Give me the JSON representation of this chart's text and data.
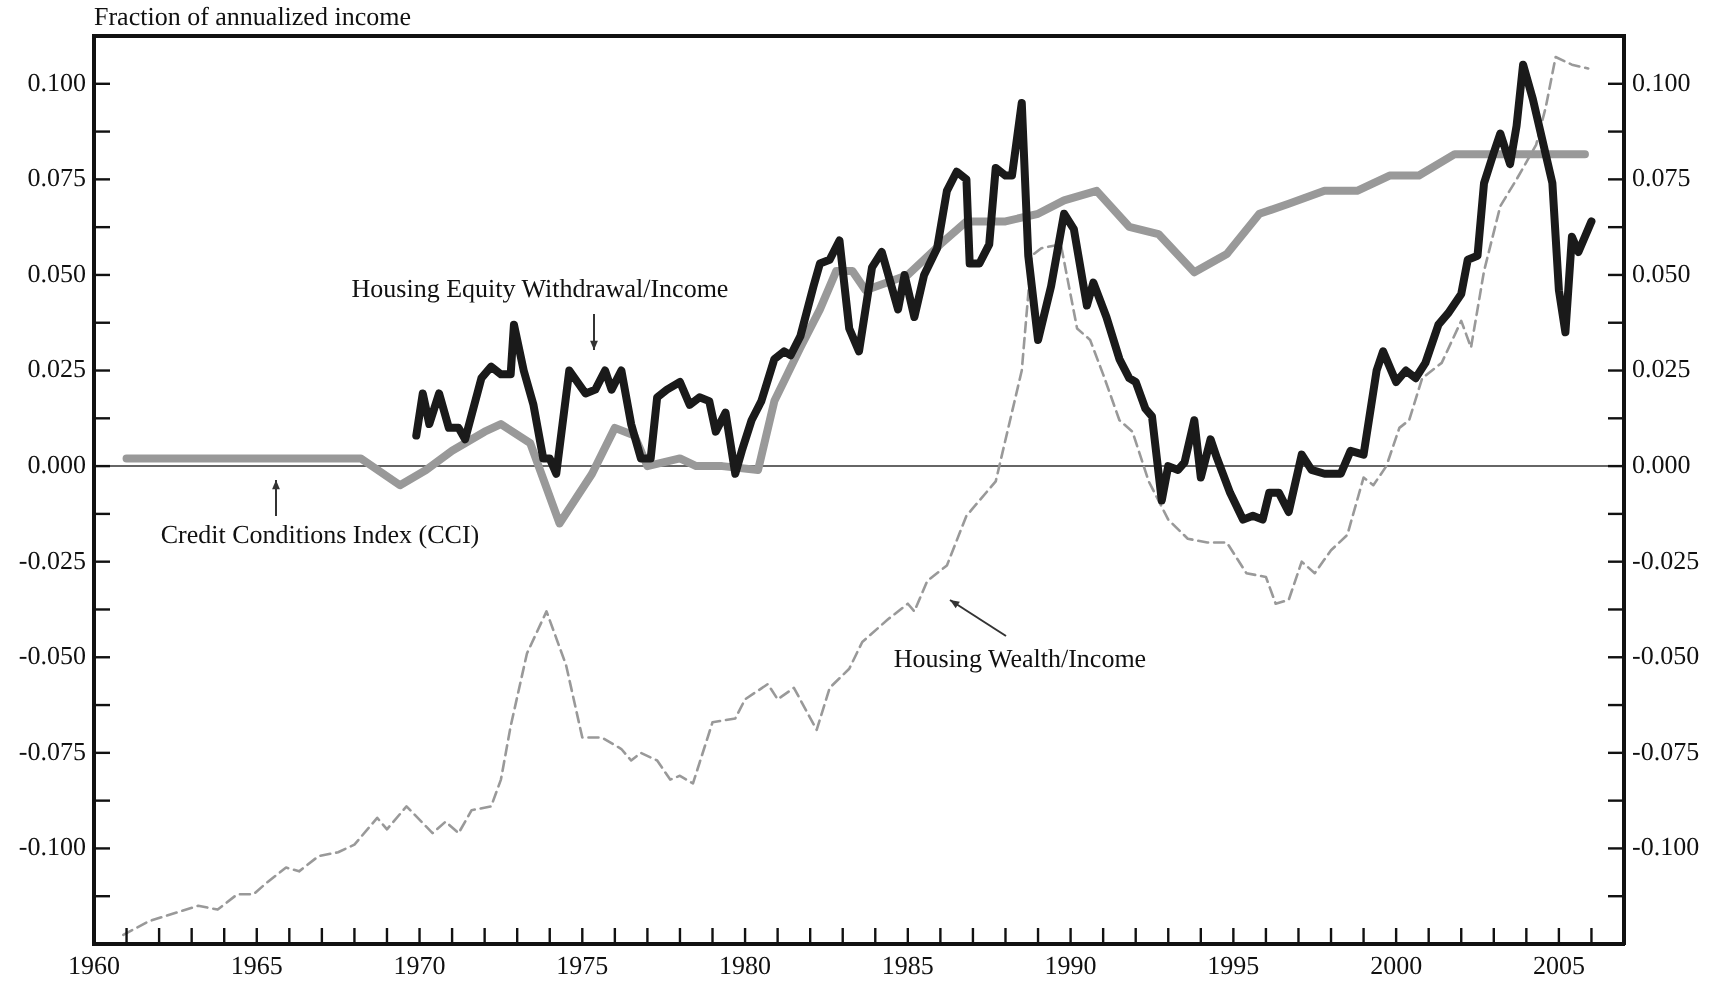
{
  "chart_data": {
    "type": "line",
    "ylabel": "Fraction of annualized income",
    "xlim": [
      1960,
      2007
    ],
    "xticks": [
      {
        "value": 1960,
        "label": "1960"
      },
      {
        "value": 1961,
        "label": null
      },
      {
        "value": 1962,
        "label": null
      },
      {
        "value": 1963,
        "label": null
      },
      {
        "value": 1964,
        "label": null
      },
      {
        "value": 1965,
        "label": "1965"
      },
      {
        "value": 1966,
        "label": null
      },
      {
        "value": 1967,
        "label": null
      },
      {
        "value": 1968,
        "label": null
      },
      {
        "value": 1969,
        "label": null
      },
      {
        "value": 1970,
        "label": "1970"
      },
      {
        "value": 1971,
        "label": null
      },
      {
        "value": 1972,
        "label": null
      },
      {
        "value": 1973,
        "label": null
      },
      {
        "value": 1974,
        "label": null
      },
      {
        "value": 1975,
        "label": "1975"
      },
      {
        "value": 1976,
        "label": null
      },
      {
        "value": 1977,
        "label": null
      },
      {
        "value": 1978,
        "label": null
      },
      {
        "value": 1979,
        "label": null
      },
      {
        "value": 1980,
        "label": "1980"
      },
      {
        "value": 1981,
        "label": null
      },
      {
        "value": 1982,
        "label": null
      },
      {
        "value": 1983,
        "label": null
      },
      {
        "value": 1984,
        "label": null
      },
      {
        "value": 1985,
        "label": "1985"
      },
      {
        "value": 1986,
        "label": null
      },
      {
        "value": 1987,
        "label": null
      },
      {
        "value": 1988,
        "label": null
      },
      {
        "value": 1989,
        "label": null
      },
      {
        "value": 1990,
        "label": "1990"
      },
      {
        "value": 1991,
        "label": null
      },
      {
        "value": 1992,
        "label": null
      },
      {
        "value": 1993,
        "label": null
      },
      {
        "value": 1994,
        "label": null
      },
      {
        "value": 1995,
        "label": "1995"
      },
      {
        "value": 1996,
        "label": null
      },
      {
        "value": 1997,
        "label": null
      },
      {
        "value": 1998,
        "label": null
      },
      {
        "value": 1999,
        "label": null
      },
      {
        "value": 2000,
        "label": "2000"
      },
      {
        "value": 2001,
        "label": null
      },
      {
        "value": 2002,
        "label": null
      },
      {
        "value": 2003,
        "label": null
      },
      {
        "value": 2004,
        "label": null
      },
      {
        "value": 2005,
        "label": "2005"
      },
      {
        "value": 2006,
        "label": null
      }
    ],
    "ylim": [
      -0.125,
      0.1125
    ],
    "yticks": [
      {
        "value": -0.1125,
        "label": null
      },
      {
        "value": -0.1,
        "label": "-0.100"
      },
      {
        "value": -0.0875,
        "label": null
      },
      {
        "value": -0.075,
        "label": "-0.075"
      },
      {
        "value": -0.0625,
        "label": null
      },
      {
        "value": -0.05,
        "label": "-0.050"
      },
      {
        "value": -0.0375,
        "label": null
      },
      {
        "value": -0.025,
        "label": "-0.025"
      },
      {
        "value": -0.0125,
        "label": null
      },
      {
        "value": 0,
        "label": "0.000"
      },
      {
        "value": 0.0125,
        "label": null
      },
      {
        "value": 0.025,
        "label": "0.025"
      },
      {
        "value": 0.0375,
        "label": null
      },
      {
        "value": 0.05,
        "label": "0.050"
      },
      {
        "value": 0.0625,
        "label": null
      },
      {
        "value": 0.075,
        "label": "0.075"
      },
      {
        "value": 0.0875,
        "label": null
      },
      {
        "value": 0.1,
        "label": "0.100"
      }
    ],
    "y2lim": [
      -0.125,
      0.1125
    ],
    "y2ticks": [
      {
        "value": -0.1125,
        "label": null
      },
      {
        "value": -0.1,
        "label": "-0.100"
      },
      {
        "value": -0.0875,
        "label": null
      },
      {
        "value": -0.075,
        "label": "-0.075"
      },
      {
        "value": -0.0625,
        "label": null
      },
      {
        "value": -0.05,
        "label": "-0.050"
      },
      {
        "value": -0.0375,
        "label": null
      },
      {
        "value": -0.025,
        "label": "-0.025"
      },
      {
        "value": -0.0125,
        "label": null
      },
      {
        "value": 0,
        "label": "0.000"
      },
      {
        "value": 0.0125,
        "label": null
      },
      {
        "value": 0.025,
        "label": "0.025"
      },
      {
        "value": 0.0375,
        "label": null
      },
      {
        "value": 0.05,
        "label": "0.050"
      },
      {
        "value": 0.0625,
        "label": null
      },
      {
        "value": 0.075,
        "label": "0.075"
      },
      {
        "value": 0.0875,
        "label": null
      },
      {
        "value": 0.1,
        "label": "0.100"
      }
    ],
    "grid": false,
    "legend": false,
    "ref_lines": [
      {
        "axis": "y",
        "value": 0,
        "color": "#666666"
      }
    ],
    "series": [
      {
        "name": "Housing Wealth/Income",
        "color": "#999999",
        "line_style": "dashed",
        "x": [
          1960.9,
          1961.7,
          1963.2,
          1963.8,
          1964.4,
          1964.9,
          1965.3,
          1965.9,
          1966.3,
          1966.9,
          1967.5,
          1968.0,
          1968.7,
          1969.0,
          1969.6,
          1970.4,
          1970.8,
          1971.2,
          1971.6,
          1972.2,
          1972.5,
          1972.8,
          1973.3,
          1973.9,
          1974.5,
          1975.0,
          1975.6,
          1976.2,
          1976.5,
          1976.8,
          1977.3,
          1977.7,
          1978.0,
          1978.4,
          1979.0,
          1979.7,
          1980.0,
          1980.7,
          1981.0,
          1981.5,
          1982.2,
          1982.6,
          1983.2,
          1983.6,
          1984.4,
          1985.0,
          1985.2,
          1985.6,
          1986.2,
          1986.8,
          1987.7,
          1988.5,
          1988.8,
          1989.1,
          1989.7,
          1990.2,
          1990.6,
          1991.0,
          1991.5,
          1991.9,
          1992.4,
          1993.0,
          1993.6,
          1994.2,
          1994.8,
          1995.4,
          1996.0,
          1996.3,
          1996.7,
          1997.1,
          1997.5,
          1998.0,
          1998.5,
          1999.0,
          1999.3,
          1999.7,
          2000.1,
          2000.4,
          2000.8,
          2001.4,
          2002.0,
          2002.3,
          2002.7,
          2003.2,
          2003.7,
          2004.3,
          2004.6,
          2004.9,
          2005.4,
          2005.9
        ],
        "values": [
          -0.1226,
          -0.119,
          -0.115,
          -0.116,
          -0.112,
          -0.112,
          -0.109,
          -0.105,
          -0.106,
          -0.102,
          -0.101,
          -0.099,
          -0.092,
          -0.095,
          -0.089,
          -0.096,
          -0.093,
          -0.096,
          -0.09,
          -0.089,
          -0.082,
          -0.068,
          -0.049,
          -0.038,
          -0.052,
          -0.071,
          -0.071,
          -0.074,
          -0.077,
          -0.075,
          -0.077,
          -0.082,
          -0.081,
          -0.083,
          -0.067,
          -0.066,
          -0.061,
          -0.057,
          -0.061,
          -0.058,
          -0.069,
          -0.058,
          -0.053,
          -0.046,
          -0.04,
          -0.036,
          -0.038,
          -0.03,
          -0.026,
          -0.013,
          -0.004,
          0.025,
          0.055,
          0.057,
          0.058,
          0.036,
          0.033,
          0.024,
          0.012,
          0.009,
          -0.004,
          -0.014,
          -0.019,
          -0.02,
          -0.02,
          -0.028,
          -0.029,
          -0.036,
          -0.035,
          -0.025,
          -0.028,
          -0.022,
          -0.018,
          -0.003,
          -0.005,
          0.0,
          0.01,
          0.012,
          0.023,
          0.027,
          0.038,
          0.031,
          0.051,
          0.068,
          0.075,
          0.084,
          0.094,
          0.107,
          0.105,
          0.104
        ]
      },
      {
        "name": "Credit Conditions Index (CCI)",
        "color": "#999999",
        "line_style": "solid",
        "x": [
          1961,
          1968.2,
          1969.4,
          1970.2,
          1971,
          1972,
          1972.5,
          1973.4,
          1974.3,
          1975.3,
          1976.0,
          1976.6,
          1977.0,
          1978.0,
          1978.5,
          1979.3,
          1980.4,
          1980.9,
          1981.7,
          1982.3,
          1982.8,
          1983.3,
          1983.7,
          1985.0,
          1986.0,
          1986.8,
          1988.0,
          1989.0,
          1989.8,
          1990.8,
          1991.8,
          1992.7,
          1993.8,
          1994.8,
          1995.8,
          1996.7,
          1997.8,
          1998.8,
          1999.8,
          2000.7,
          2001.8,
          2005.8
        ],
        "values": [
          0.002,
          0.002,
          -0.005,
          -0.001,
          0.004,
          0.009,
          0.011,
          0.006,
          -0.015,
          -0.002,
          0.01,
          0.008,
          0.0,
          0.002,
          0.0,
          0.0,
          -0.001,
          0.017,
          0.031,
          0.041,
          0.051,
          0.051,
          0.046,
          0.05,
          0.058,
          0.064,
          0.064,
          0.066,
          0.0695,
          0.072,
          0.0626,
          0.0607,
          0.0507,
          0.0555,
          0.066,
          0.0686,
          0.072,
          0.072,
          0.076,
          0.076,
          0.0816,
          0.0816
        ]
      },
      {
        "name": "Housing Equity Withdrawal/Income",
        "color": "#1a1a1a",
        "line_style": "solid",
        "x": [
          1969.9,
          1970.1,
          1970.3,
          1970.6,
          1970.9,
          1971.2,
          1971.4,
          1971.9,
          1972.2,
          1972.5,
          1972.8,
          1972.9,
          1973.2,
          1973.5,
          1973.8,
          1974.0,
          1974.2,
          1974.6,
          1975.1,
          1975.4,
          1975.7,
          1975.9,
          1976.2,
          1976.5,
          1976.8,
          1977.1,
          1977.3,
          1977.6,
          1978.0,
          1978.3,
          1978.6,
          1978.9,
          1979.1,
          1979.4,
          1979.7,
          1979.9,
          1980.2,
          1980.5,
          1980.9,
          1981.2,
          1981.4,
          1981.7,
          1982.1,
          1982.3,
          1982.6,
          1982.9,
          1983.2,
          1983.5,
          1983.9,
          1984.2,
          1984.5,
          1984.7,
          1984.9,
          1985.2,
          1985.5,
          1985.9,
          1986.2,
          1986.5,
          1986.8,
          1986.9,
          1987.2,
          1987.5,
          1987.7,
          1988.0,
          1988.2,
          1988.5,
          1988.7,
          1989.0,
          1989.4,
          1989.8,
          1990.1,
          1990.5,
          1990.7,
          1991.1,
          1991.5,
          1991.8,
          1992.0,
          1992.3,
          1992.5,
          1992.8,
          1993.0,
          1993.3,
          1993.5,
          1993.8,
          1994.0,
          1994.3,
          1994.5,
          1994.9,
          1995.3,
          1995.6,
          1995.9,
          1996.1,
          1996.4,
          1996.7,
          1997.1,
          1997.4,
          1997.8,
          1998.3,
          1998.6,
          1999.0,
          1999.4,
          1999.6,
          2000.0,
          2000.3,
          2000.6,
          2000.9,
          2001.3,
          2001.6,
          2002.0,
          2002.2,
          2002.5,
          2002.7,
          2003.0,
          2003.2,
          2003.5,
          2003.7,
          2003.9,
          2004.2,
          2004.5,
          2004.8,
          2005.0,
          2005.2,
          2005.4,
          2005.6,
          2006.0
        ],
        "values": [
          0.008,
          0.019,
          0.011,
          0.019,
          0.01,
          0.01,
          0.007,
          0.023,
          0.026,
          0.024,
          0.024,
          0.037,
          0.025,
          0.016,
          0.002,
          0.002,
          -0.002,
          0.025,
          0.019,
          0.02,
          0.025,
          0.02,
          0.025,
          0.011,
          0.002,
          0.002,
          0.018,
          0.02,
          0.022,
          0.016,
          0.018,
          0.017,
          0.009,
          0.014,
          -0.002,
          0.004,
          0.012,
          0.017,
          0.028,
          0.03,
          0.029,
          0.034,
          0.047,
          0.053,
          0.054,
          0.059,
          0.036,
          0.03,
          0.052,
          0.056,
          0.047,
          0.041,
          0.05,
          0.039,
          0.05,
          0.057,
          0.072,
          0.077,
          0.075,
          0.053,
          0.053,
          0.058,
          0.078,
          0.076,
          0.076,
          0.095,
          0.055,
          0.033,
          0.047,
          0.066,
          0.062,
          0.042,
          0.048,
          0.039,
          0.028,
          0.023,
          0.022,
          0.015,
          0.013,
          -0.009,
          0.0,
          -0.001,
          0.001,
          0.012,
          -0.003,
          0.007,
          0.002,
          -0.007,
          -0.014,
          -0.013,
          -0.014,
          -0.007,
          -0.007,
          -0.012,
          0.003,
          -0.001,
          -0.002,
          -0.002,
          0.004,
          0.003,
          0.025,
          0.03,
          0.022,
          0.025,
          0.023,
          0.027,
          0.037,
          0.04,
          0.045,
          0.054,
          0.055,
          0.074,
          0.082,
          0.087,
          0.079,
          0.089,
          0.105,
          0.096,
          0.085,
          0.074,
          0.046,
          0.035,
          0.06,
          0.056,
          0.064
        ]
      }
    ]
  }
}
